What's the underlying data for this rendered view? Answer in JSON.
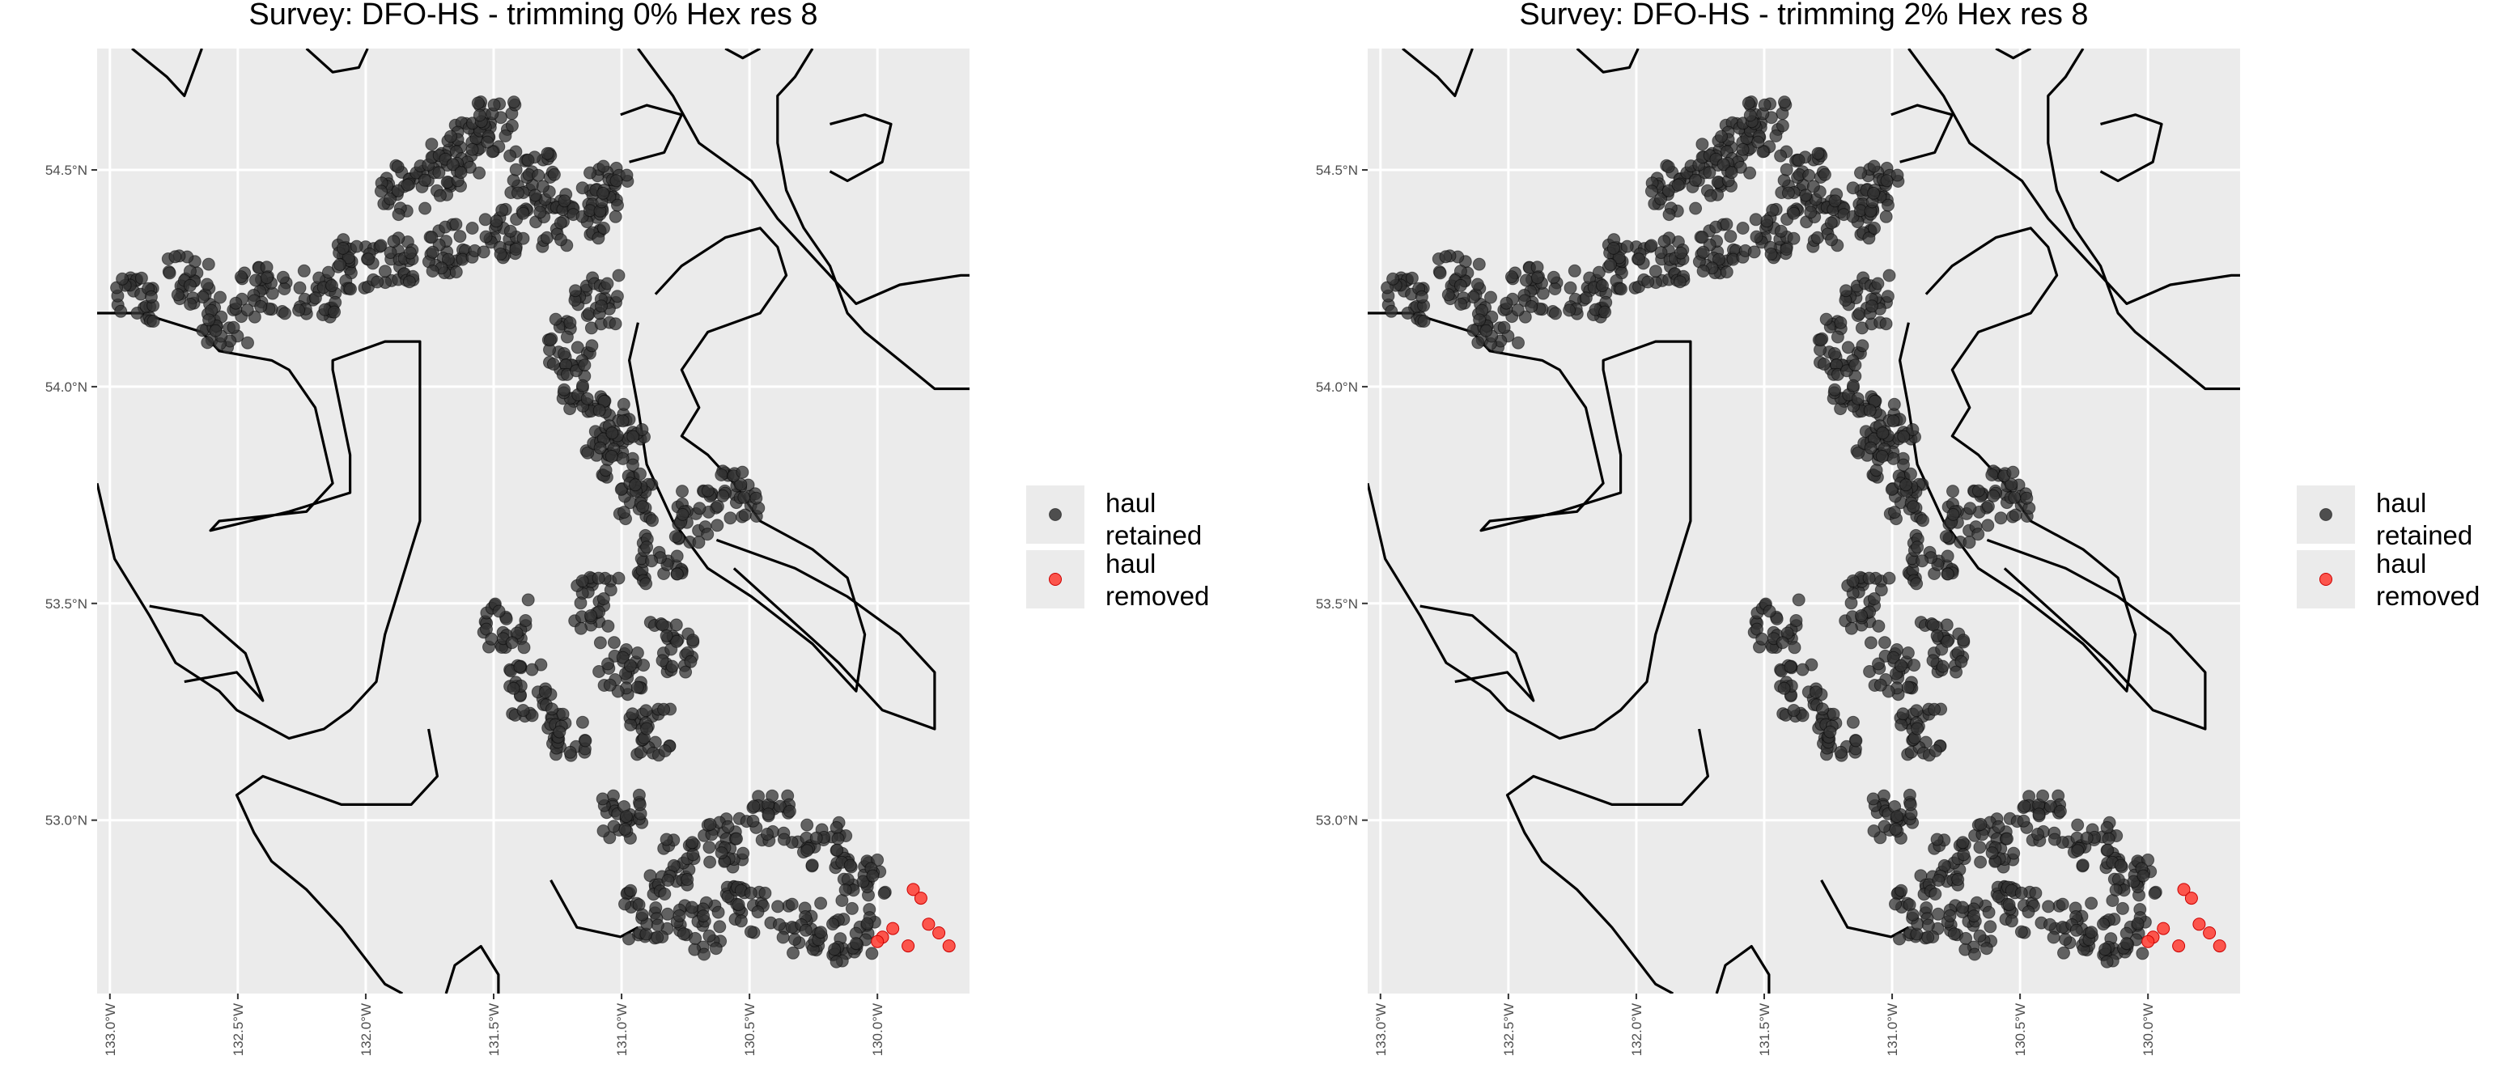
{
  "chart_data": [
    {
      "type": "scatter",
      "title": "Survey: DFO-HS - trimming 0% Hex res 8",
      "xlabel": "",
      "ylabel": "",
      "xlim": [
        -133.05,
        -129.64
      ],
      "ylim": [
        52.6,
        54.78
      ],
      "x_ticks": [
        -133.0,
        -132.5,
        -132.0,
        -131.5,
        -131.0,
        -130.5,
        -130.0
      ],
      "x_tick_labels": [
        "133.0°W",
        "132.5°W",
        "132.0°W",
        "131.5°W",
        "131.0°W",
        "130.5°W",
        "130.0°W"
      ],
      "y_ticks": [
        53.0,
        53.5,
        54.0,
        54.5
      ],
      "y_tick_labels": [
        "53.0°N",
        "53.5°N",
        "54.0°N",
        "54.5°N"
      ],
      "grid": true,
      "legend": {
        "placement": "right",
        "entries": [
          "haul retained",
          "haul removed"
        ]
      },
      "series": [
        {
          "name": "haul retained",
          "color": "#333333",
          "clusters": [
            {
              "x": [
                -132.4,
                -132.9,
                -132.7,
                -132.55,
                -132.2,
                -132.05,
                -131.9,
                -131.7,
                -131.5,
                -131.3,
                -131.15,
                -131.05
              ],
              "y": [
                54.22,
                54.2,
                54.25,
                54.15,
                54.22,
                54.28,
                54.3,
                54.32,
                54.35,
                54.38,
                54.4,
                54.45
              ]
            },
            {
              "x": [
                -131.85,
                -131.7,
                -131.6,
                -131.5,
                -131.35
              ],
              "y": [
                54.45,
                54.5,
                54.55,
                54.6,
                54.5
              ]
            },
            {
              "x": [
                -131.2,
                -131.05,
                -131.15,
                -131.1
              ],
              "y": [
                54.1,
                53.9,
                54.0,
                54.2
              ]
            },
            {
              "x": [
                -131.0,
                -130.95,
                -130.85,
                -130.7,
                -130.55
              ],
              "y": [
                53.85,
                53.75,
                53.6,
                53.7,
                53.75
              ]
            },
            {
              "x": [
                -131.1,
                -131.0,
                -130.9,
                -130.8
              ],
              "y": [
                53.5,
                53.35,
                53.2,
                53.4
              ]
            },
            {
              "x": [
                -131.45,
                -131.35,
                -131.2
              ],
              "y": [
                53.45,
                53.3,
                53.2
              ]
            },
            {
              "x": [
                -131.0,
                -130.8,
                -130.6,
                -130.4,
                -130.2,
                -130.05
              ],
              "y": [
                53.0,
                52.9,
                52.95,
                53.0,
                52.95,
                52.85
              ]
            },
            {
              "x": [
                -130.9,
                -130.7,
                -130.5,
                -130.3,
                -130.1
              ],
              "y": [
                52.78,
                52.75,
                52.8,
                52.75,
                52.72
              ]
            }
          ]
        },
        {
          "name": "haul removed",
          "color": "#ff3b30",
          "x": [
            -129.98,
            -129.94,
            -129.86,
            -129.83,
            -129.76,
            -129.72,
            -129.8,
            -129.88,
            -130.0
          ],
          "y": [
            52.73,
            52.75,
            52.84,
            52.82,
            52.74,
            52.71,
            52.76,
            52.71,
            52.72
          ]
        }
      ]
    },
    {
      "type": "scatter",
      "title": "Survey: DFO-HS - trimming 2% Hex res 8",
      "xlabel": "",
      "ylabel": "",
      "xlim": [
        -133.05,
        -129.64
      ],
      "ylim": [
        52.6,
        54.78
      ],
      "x_ticks": [
        -133.0,
        -132.5,
        -132.0,
        -131.5,
        -131.0,
        -130.5,
        -130.0
      ],
      "x_tick_labels": [
        "133.0°W",
        "132.5°W",
        "132.0°W",
        "131.5°W",
        "131.0°W",
        "130.5°W",
        "130.0°W"
      ],
      "y_ticks": [
        53.0,
        53.5,
        54.0,
        54.5
      ],
      "y_tick_labels": [
        "53.0°N",
        "53.5°N",
        "54.0°N",
        "54.5°N"
      ],
      "grid": true,
      "legend": {
        "placement": "right",
        "entries": [
          "haul retained",
          "haul removed"
        ]
      },
      "series": [
        {
          "name": "haul retained",
          "color": "#333333",
          "clusters": [
            {
              "x": [
                -132.4,
                -132.9,
                -132.7,
                -132.55,
                -132.2,
                -132.05,
                -131.9,
                -131.7,
                -131.5,
                -131.3,
                -131.15,
                -131.05
              ],
              "y": [
                54.22,
                54.2,
                54.25,
                54.15,
                54.22,
                54.28,
                54.3,
                54.32,
                54.35,
                54.38,
                54.4,
                54.45
              ]
            },
            {
              "x": [
                -131.85,
                -131.7,
                -131.6,
                -131.5,
                -131.35
              ],
              "y": [
                54.45,
                54.5,
                54.55,
                54.6,
                54.5
              ]
            },
            {
              "x": [
                -131.2,
                -131.05,
                -131.15,
                -131.1
              ],
              "y": [
                54.1,
                53.9,
                54.0,
                54.2
              ]
            },
            {
              "x": [
                -131.0,
                -130.95,
                -130.85,
                -130.7,
                -130.55
              ],
              "y": [
                53.85,
                53.75,
                53.6,
                53.7,
                53.75
              ]
            },
            {
              "x": [
                -131.1,
                -131.0,
                -130.9,
                -130.8
              ],
              "y": [
                53.5,
                53.35,
                53.2,
                53.4
              ]
            },
            {
              "x": [
                -131.45,
                -131.35,
                -131.2
              ],
              "y": [
                53.45,
                53.3,
                53.2
              ]
            },
            {
              "x": [
                -131.0,
                -130.8,
                -130.6,
                -130.4,
                -130.2,
                -130.05
              ],
              "y": [
                53.0,
                52.9,
                52.95,
                53.0,
                52.95,
                52.85
              ]
            },
            {
              "x": [
                -130.9,
                -130.7,
                -130.5,
                -130.3,
                -130.1
              ],
              "y": [
                52.78,
                52.75,
                52.8,
                52.75,
                52.72
              ]
            }
          ]
        },
        {
          "name": "haul removed",
          "color": "#ff3b30",
          "x": [
            -129.98,
            -129.94,
            -129.86,
            -129.83,
            -129.76,
            -129.72,
            -129.8,
            -129.88,
            -130.0
          ],
          "y": [
            52.73,
            52.75,
            52.84,
            52.82,
            52.74,
            52.71,
            52.76,
            52.71,
            52.72
          ]
        }
      ]
    }
  ],
  "legend_lines": {
    "retained": [
      "haul",
      "retained"
    ],
    "removed": [
      "haul",
      "removed"
    ]
  },
  "colors": {
    "panel_bg": "#ebebeb",
    "grid": "#ffffff",
    "coast": "#000000",
    "retained": "#333333",
    "removed": "#ff3b30"
  }
}
